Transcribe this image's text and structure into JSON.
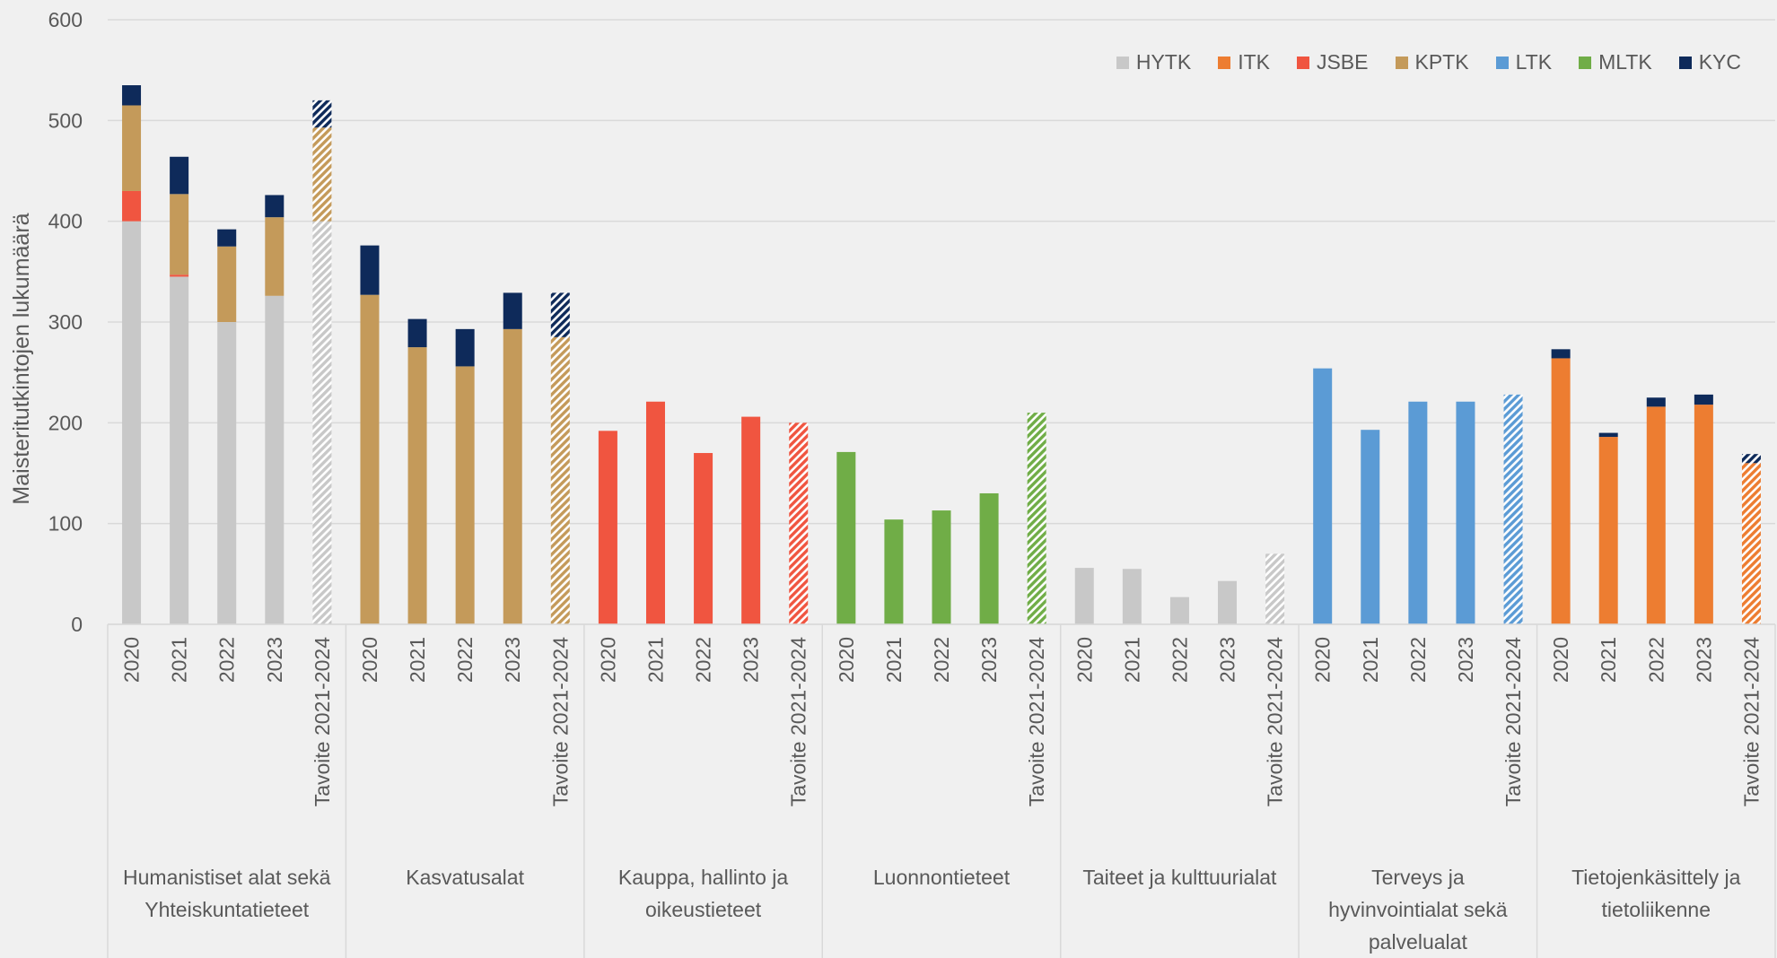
{
  "chart_data": {
    "type": "stacked_bar",
    "y_label": "Maisteritutkintojen lukumäärä",
    "groups": [
      {
        "label": "Humanistiset alat sekä Yhteiskuntatieteet",
        "categories": [
          "2020",
          "2021",
          "2022",
          "2023",
          "Tavoite 2021-2024"
        ]
      },
      {
        "label": "Kasvatusalat",
        "categories": [
          "2020",
          "2021",
          "2022",
          "2023",
          "Tavoite 2021-2024"
        ]
      },
      {
        "label": "Kauppa, hallinto ja oikeustieteet",
        "categories": [
          "2020",
          "2021",
          "2022",
          "2023",
          "Tavoite 2021-2024"
        ]
      },
      {
        "label": "Luonnontieteet",
        "categories": [
          "2020",
          "2021",
          "2022",
          "2023",
          "Tavoite 2021-2024"
        ]
      },
      {
        "label": "Taiteet ja kulttuurialat",
        "categories": [
          "2020",
          "2021",
          "2022",
          "2023",
          "Tavoite 2021-2024"
        ]
      },
      {
        "label": "Terveys ja hyvinvointialat sekä palvelualat",
        "categories": [
          "2020",
          "2021",
          "2022",
          "2023",
          "Tavoite 2021-2024"
        ]
      },
      {
        "label": "Tietojenkäsittely ja tietoliikenne",
        "categories": [
          "2020",
          "2021",
          "2022",
          "2023",
          "Tavoite 2021-2024"
        ]
      }
    ],
    "series": [
      {
        "name": "HYTK",
        "color": "#c8c8c8",
        "values": [
          400,
          345,
          300,
          326,
          400,
          null,
          null,
          null,
          null,
          null,
          null,
          null,
          null,
          null,
          null,
          null,
          null,
          null,
          null,
          null,
          56,
          55,
          27,
          43,
          70,
          null,
          null,
          null,
          null,
          null,
          null,
          null,
          null,
          null,
          null
        ]
      },
      {
        "name": "ITK",
        "color": "#ed7d31",
        "values": [
          null,
          null,
          null,
          null,
          null,
          null,
          null,
          null,
          null,
          null,
          null,
          null,
          null,
          null,
          null,
          null,
          null,
          null,
          null,
          null,
          null,
          null,
          null,
          null,
          null,
          null,
          null,
          null,
          null,
          null,
          264,
          186,
          216,
          218,
          160
        ]
      },
      {
        "name": "JSBE",
        "color": "#f05540",
        "values": [
          30,
          2,
          null,
          null,
          null,
          null,
          null,
          null,
          null,
          null,
          192,
          221,
          170,
          206,
          200,
          null,
          null,
          null,
          null,
          null,
          null,
          null,
          null,
          null,
          null,
          null,
          null,
          null,
          null,
          null,
          null,
          null,
          null,
          null,
          null
        ]
      },
      {
        "name": "KPTK",
        "color": "#c49a5a",
        "values": [
          85,
          80,
          75,
          78,
          93,
          327,
          275,
          256,
          293,
          285,
          null,
          null,
          null,
          null,
          null,
          null,
          null,
          null,
          null,
          null,
          null,
          null,
          null,
          null,
          null,
          null,
          null,
          null,
          null,
          null,
          null,
          null,
          null,
          null,
          null
        ]
      },
      {
        "name": "LTK",
        "color": "#5b9bd5",
        "values": [
          null,
          null,
          null,
          null,
          null,
          null,
          null,
          null,
          null,
          null,
          null,
          null,
          null,
          null,
          null,
          null,
          null,
          null,
          null,
          null,
          null,
          null,
          null,
          null,
          null,
          254,
          193,
          221,
          221,
          228,
          null,
          null,
          null,
          null,
          null
        ]
      },
      {
        "name": "MLTK",
        "color": "#70ad47",
        "values": [
          null,
          null,
          null,
          null,
          null,
          null,
          null,
          null,
          null,
          null,
          null,
          null,
          null,
          null,
          null,
          171,
          104,
          113,
          130,
          210,
          null,
          null,
          null,
          null,
          null,
          null,
          null,
          null,
          null,
          null,
          null,
          null,
          null,
          null,
          null
        ]
      },
      {
        "name": "KYC",
        "color": "#0e2a5a",
        "values": [
          20,
          37,
          17,
          22,
          27,
          49,
          28,
          37,
          36,
          44,
          null,
          null,
          null,
          null,
          null,
          null,
          null,
          null,
          null,
          null,
          null,
          null,
          null,
          null,
          null,
          null,
          null,
          null,
          null,
          null,
          9,
          4,
          9,
          10,
          9
        ]
      }
    ],
    "ylim": [
      0,
      600
    ],
    "yticks": [
      0,
      100,
      200,
      300,
      400,
      500,
      600
    ],
    "grid": true,
    "legend": "top-right"
  }
}
